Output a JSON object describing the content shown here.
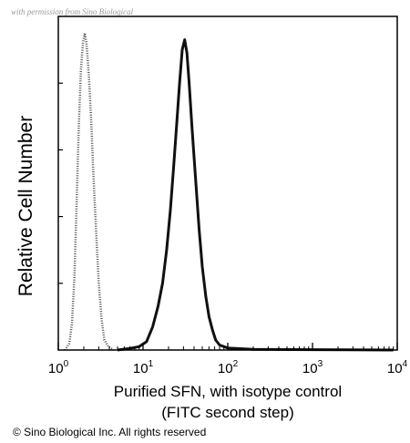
{
  "watermark": "with permission from Sino Biological",
  "copyright": "© Sino Biological Inc. All rights reserved",
  "chart_data": {
    "type": "line",
    "title": "",
    "xlabel_line1": "Purified SFN, with isotype control",
    "xlabel_line2": "(FITC second step)",
    "ylabel": "Relative Cell Number",
    "xscale": "log",
    "xlim": [
      1,
      10000
    ],
    "ylim": [
      0,
      100
    ],
    "grid": false,
    "legend": "none",
    "x_ticks": [
      {
        "base": "10",
        "exp": "0",
        "value": 1
      },
      {
        "base": "10",
        "exp": "1",
        "value": 10
      },
      {
        "base": "10",
        "exp": "2",
        "value": 100
      },
      {
        "base": "10",
        "exp": "3",
        "value": 1000
      },
      {
        "base": "10",
        "exp": "4",
        "value": 10000
      }
    ],
    "series": [
      {
        "style": "dotted",
        "color": "#555555",
        "points": [
          [
            1.2,
            0
          ],
          [
            1.35,
            2
          ],
          [
            1.45,
            8
          ],
          [
            1.55,
            22
          ],
          [
            1.65,
            45
          ],
          [
            1.75,
            68
          ],
          [
            1.85,
            84
          ],
          [
            1.95,
            92
          ],
          [
            2.05,
            95
          ],
          [
            2.15,
            92
          ],
          [
            2.3,
            82
          ],
          [
            2.45,
            68
          ],
          [
            2.6,
            52
          ],
          [
            2.8,
            35
          ],
          [
            3.0,
            20
          ],
          [
            3.25,
            9
          ],
          [
            3.5,
            3
          ],
          [
            3.9,
            1
          ],
          [
            4.5,
            0
          ]
        ]
      },
      {
        "style": "solid",
        "color": "#111111",
        "points": [
          [
            5,
            0
          ],
          [
            7,
            0.5
          ],
          [
            9,
            1
          ],
          [
            11,
            2.5
          ],
          [
            13,
            7
          ],
          [
            15,
            13
          ],
          [
            17,
            20
          ],
          [
            19,
            30
          ],
          [
            21,
            42
          ],
          [
            23,
            55
          ],
          [
            25,
            68
          ],
          [
            27,
            80
          ],
          [
            29,
            90
          ],
          [
            31,
            93
          ],
          [
            33,
            89
          ],
          [
            35,
            80
          ],
          [
            38,
            66
          ],
          [
            42,
            50
          ],
          [
            46,
            36
          ],
          [
            50,
            25
          ],
          [
            55,
            16
          ],
          [
            60,
            10
          ],
          [
            66,
            6
          ],
          [
            72,
            3
          ],
          [
            80,
            1.5
          ],
          [
            100,
            0.6
          ],
          [
            200,
            0.2
          ],
          [
            1000,
            0.1
          ],
          [
            9000,
            0
          ]
        ]
      }
    ]
  }
}
